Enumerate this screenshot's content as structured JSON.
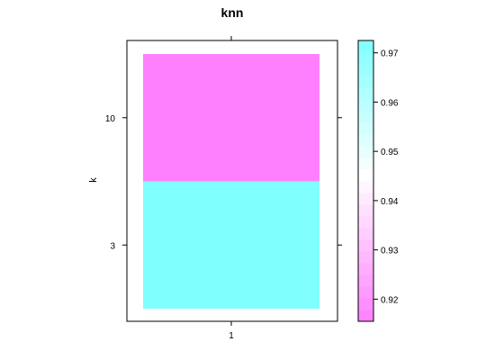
{
  "chart_data": {
    "type": "heatmap",
    "title": "knn",
    "xlabel": "",
    "ylabel": "k",
    "x_categories": [
      "1"
    ],
    "y_categories": [
      "3",
      "10"
    ],
    "cells": [
      {
        "x": "1",
        "y": "3",
        "value": 0.9725
      },
      {
        "x": "1",
        "y": "10",
        "value": 0.9155
      }
    ],
    "colorbar": {
      "range": [
        0.9155,
        0.9725
      ],
      "midpoint": 0.945,
      "ticks": [
        0.92,
        0.93,
        0.94,
        0.95,
        0.96,
        0.97
      ],
      "tick_labels": [
        "0.92",
        "0.93",
        "0.94",
        "0.95",
        "0.96",
        "0.97"
      ],
      "low_color": "#ff80ff",
      "mid_color": "#ffffff",
      "high_color": "#80ffff"
    },
    "grid": false,
    "legend_position": "right"
  }
}
